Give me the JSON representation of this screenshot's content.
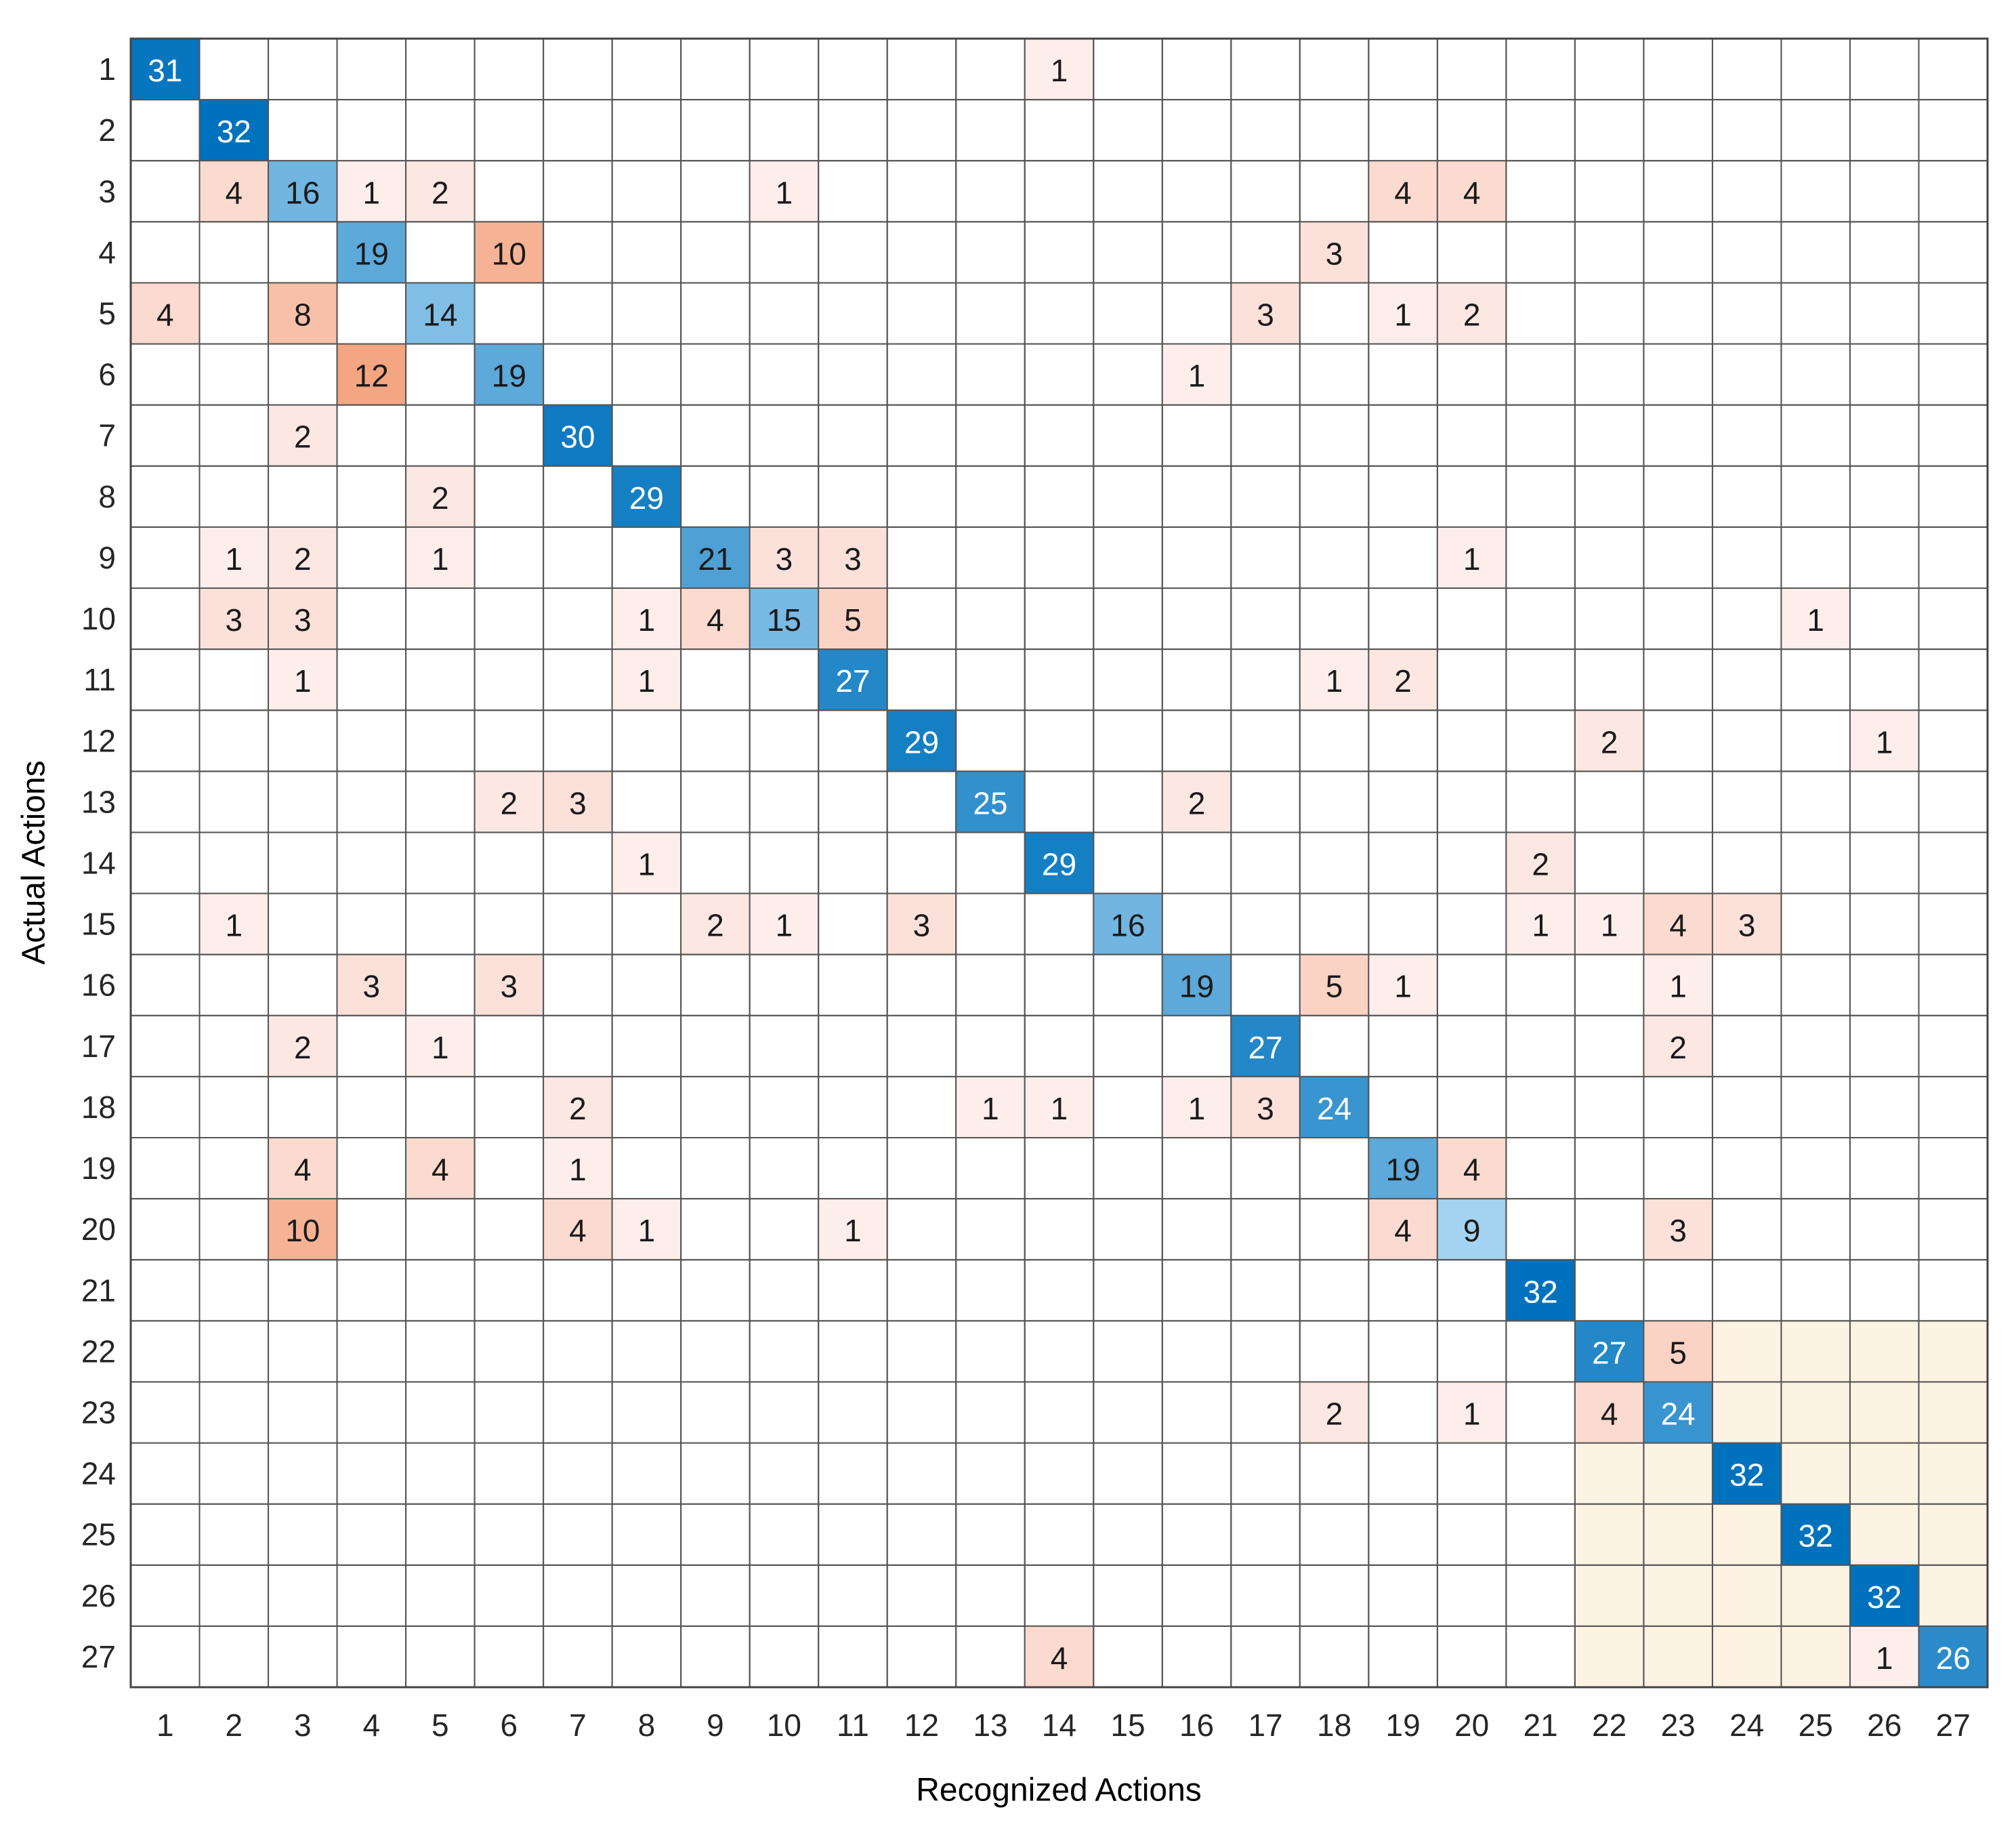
{
  "chart_data": {
    "type": "heatmap",
    "xlabel": "Recognized Actions",
    "ylabel": "Actual Actions",
    "x": [
      1,
      2,
      3,
      4,
      5,
      6,
      7,
      8,
      9,
      10,
      11,
      12,
      13,
      14,
      15,
      16,
      17,
      18,
      19,
      20,
      21,
      22,
      23,
      24,
      25,
      26,
      27
    ],
    "y": [
      1,
      2,
      3,
      4,
      5,
      6,
      7,
      8,
      9,
      10,
      11,
      12,
      13,
      14,
      15,
      16,
      17,
      18,
      19,
      20,
      21,
      22,
      23,
      24,
      25,
      26,
      27
    ],
    "values": [
      [
        31,
        null,
        null,
        null,
        null,
        null,
        null,
        null,
        null,
        null,
        null,
        null,
        null,
        1,
        null,
        null,
        null,
        null,
        null,
        null,
        null,
        null,
        null,
        null,
        null,
        null,
        null
      ],
      [
        null,
        32,
        null,
        null,
        null,
        null,
        null,
        null,
        null,
        null,
        null,
        null,
        null,
        null,
        null,
        null,
        null,
        null,
        null,
        null,
        null,
        null,
        null,
        null,
        null,
        null,
        null
      ],
      [
        null,
        4,
        16,
        1,
        2,
        null,
        null,
        null,
        null,
        1,
        null,
        null,
        null,
        null,
        null,
        null,
        null,
        null,
        4,
        4,
        null,
        null,
        null,
        null,
        null,
        null,
        null
      ],
      [
        null,
        null,
        null,
        19,
        null,
        10,
        null,
        null,
        null,
        null,
        null,
        null,
        null,
        null,
        null,
        null,
        null,
        3,
        null,
        null,
        null,
        null,
        null,
        null,
        null,
        null,
        null
      ],
      [
        4,
        null,
        8,
        null,
        14,
        null,
        null,
        null,
        null,
        null,
        null,
        null,
        null,
        null,
        null,
        null,
        3,
        null,
        1,
        2,
        null,
        null,
        null,
        null,
        null,
        null,
        null
      ],
      [
        null,
        null,
        null,
        12,
        null,
        19,
        null,
        null,
        null,
        null,
        null,
        null,
        null,
        null,
        null,
        1,
        null,
        null,
        null,
        null,
        null,
        null,
        null,
        null,
        null,
        null,
        null
      ],
      [
        null,
        null,
        2,
        null,
        null,
        null,
        30,
        null,
        null,
        null,
        null,
        null,
        null,
        null,
        null,
        null,
        null,
        null,
        null,
        null,
        null,
        null,
        null,
        null,
        null,
        null,
        null
      ],
      [
        null,
        null,
        null,
        null,
        2,
        null,
        null,
        29,
        null,
        null,
        null,
        null,
        null,
        null,
        null,
        null,
        null,
        null,
        null,
        null,
        null,
        null,
        null,
        null,
        null,
        null,
        null
      ],
      [
        null,
        1,
        2,
        null,
        1,
        null,
        null,
        null,
        21,
        3,
        3,
        null,
        null,
        null,
        null,
        null,
        null,
        null,
        null,
        1,
        null,
        null,
        null,
        null,
        null,
        null,
        null
      ],
      [
        null,
        3,
        3,
        null,
        null,
        null,
        null,
        1,
        4,
        15,
        5,
        null,
        null,
        null,
        null,
        null,
        null,
        null,
        null,
        null,
        null,
        null,
        null,
        null,
        1,
        null,
        null
      ],
      [
        null,
        null,
        1,
        null,
        null,
        null,
        null,
        1,
        null,
        null,
        27,
        null,
        null,
        null,
        null,
        null,
        null,
        1,
        2,
        null,
        null,
        null,
        null,
        null,
        null,
        null,
        null
      ],
      [
        null,
        null,
        null,
        null,
        null,
        null,
        null,
        null,
        null,
        null,
        null,
        29,
        null,
        null,
        null,
        null,
        null,
        null,
        null,
        null,
        null,
        2,
        null,
        null,
        null,
        1,
        null
      ],
      [
        null,
        null,
        null,
        null,
        null,
        2,
        3,
        null,
        null,
        null,
        null,
        null,
        25,
        null,
        null,
        2,
        null,
        null,
        null,
        null,
        null,
        null,
        null,
        null,
        null,
        null,
        null
      ],
      [
        null,
        null,
        null,
        null,
        null,
        null,
        null,
        1,
        null,
        null,
        null,
        null,
        null,
        29,
        null,
        null,
        null,
        null,
        null,
        null,
        2,
        null,
        null,
        null,
        null,
        null,
        null
      ],
      [
        null,
        1,
        null,
        null,
        null,
        null,
        null,
        null,
        2,
        1,
        null,
        3,
        null,
        null,
        16,
        null,
        null,
        null,
        null,
        null,
        1,
        1,
        4,
        3,
        null,
        null,
        null
      ],
      [
        null,
        null,
        null,
        3,
        null,
        3,
        null,
        null,
        null,
        null,
        null,
        null,
        null,
        null,
        null,
        19,
        null,
        5,
        1,
        null,
        null,
        null,
        1,
        null,
        null,
        null,
        null
      ],
      [
        null,
        null,
        2,
        null,
        1,
        null,
        null,
        null,
        null,
        null,
        null,
        null,
        null,
        null,
        null,
        null,
        27,
        null,
        null,
        null,
        null,
        null,
        2,
        null,
        null,
        null,
        null
      ],
      [
        null,
        null,
        null,
        null,
        null,
        null,
        2,
        null,
        null,
        null,
        null,
        null,
        1,
        1,
        null,
        1,
        3,
        24,
        null,
        null,
        null,
        null,
        null,
        null,
        null,
        null,
        null
      ],
      [
        null,
        null,
        4,
        null,
        4,
        null,
        1,
        null,
        null,
        null,
        null,
        null,
        null,
        null,
        null,
        null,
        null,
        null,
        19,
        4,
        null,
        null,
        null,
        null,
        null,
        null,
        null
      ],
      [
        null,
        null,
        10,
        null,
        null,
        null,
        4,
        1,
        null,
        null,
        1,
        null,
        null,
        null,
        null,
        null,
        null,
        null,
        4,
        9,
        null,
        null,
        3,
        null,
        null,
        null,
        null
      ],
      [
        null,
        null,
        null,
        null,
        null,
        null,
        null,
        null,
        null,
        null,
        null,
        null,
        null,
        null,
        null,
        null,
        null,
        null,
        null,
        null,
        32,
        null,
        null,
        null,
        null,
        null,
        null
      ],
      [
        null,
        null,
        null,
        null,
        null,
        null,
        null,
        null,
        null,
        null,
        null,
        null,
        null,
        null,
        null,
        null,
        null,
        null,
        null,
        null,
        null,
        27,
        5,
        null,
        null,
        null,
        null
      ],
      [
        null,
        null,
        null,
        null,
        null,
        null,
        null,
        null,
        null,
        null,
        null,
        null,
        null,
        null,
        null,
        null,
        null,
        2,
        null,
        1,
        null,
        4,
        24,
        null,
        null,
        null,
        null
      ],
      [
        null,
        null,
        null,
        null,
        null,
        null,
        null,
        null,
        null,
        null,
        null,
        null,
        null,
        null,
        null,
        null,
        null,
        null,
        null,
        null,
        null,
        null,
        null,
        32,
        null,
        null,
        null
      ],
      [
        null,
        null,
        null,
        null,
        null,
        null,
        null,
        null,
        null,
        null,
        null,
        null,
        null,
        null,
        null,
        null,
        null,
        null,
        null,
        null,
        null,
        null,
        null,
        null,
        32,
        null,
        null
      ],
      [
        null,
        null,
        null,
        null,
        null,
        null,
        null,
        null,
        null,
        null,
        null,
        null,
        null,
        null,
        null,
        null,
        null,
        null,
        null,
        null,
        null,
        null,
        null,
        null,
        null,
        32,
        null
      ],
      [
        null,
        null,
        null,
        null,
        null,
        null,
        null,
        null,
        null,
        null,
        null,
        null,
        null,
        4,
        null,
        null,
        null,
        null,
        null,
        null,
        null,
        null,
        null,
        null,
        null,
        1,
        26
      ]
    ]
  }
}
